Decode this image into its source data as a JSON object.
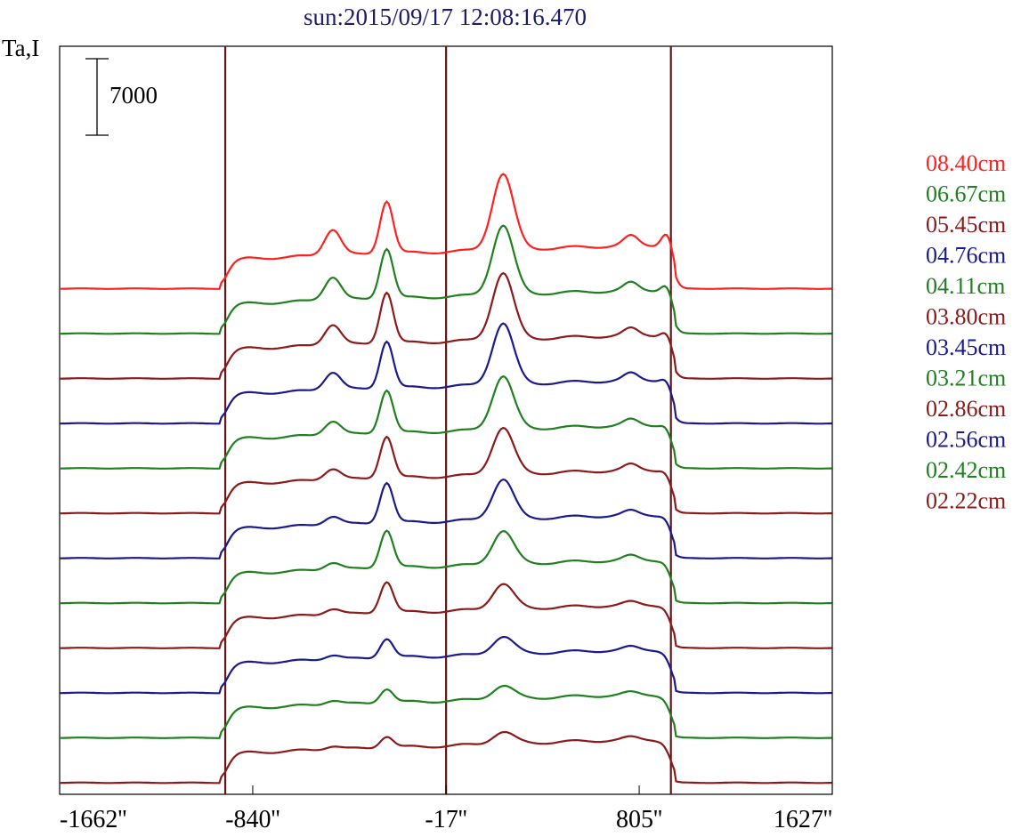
{
  "chart_data": {
    "type": "line",
    "title": "sun:2015/09/17 12:08:16.470",
    "ylabel": "Ta,I",
    "xlabel": "",
    "x_ticks": [
      {
        "value": -1662,
        "label": "-1662''"
      },
      {
        "value": -840,
        "label": "-840''"
      },
      {
        "value": -17,
        "label": "-17''"
      },
      {
        "value": 805,
        "label": "805''"
      },
      {
        "value": 1627,
        "label": "1627''"
      }
    ],
    "xlim": [
      -1662,
      1627
    ],
    "scale_bar": {
      "value": 7000,
      "label": "7000"
    },
    "vertical_lines": [
      -957,
      -17,
      940
    ],
    "grid": false,
    "legend_position": "right",
    "series": [
      {
        "name": "08.40cm",
        "color": "#ff2020",
        "peaks": [
          1.0,
          2.0,
          2.85,
          0.35,
          0.95
        ],
        "base": 0.4
      },
      {
        "name": "06.67cm",
        "color": "#208020",
        "peaks": [
          0.9,
          1.9,
          2.6,
          0.28,
          0.65
        ],
        "base": 0.4
      },
      {
        "name": "05.45cm",
        "color": "#8b1a1a",
        "peaks": [
          0.8,
          1.95,
          2.5,
          0.25,
          0.55
        ],
        "base": 0.4
      },
      {
        "name": "04.76cm",
        "color": "#1a1a8b",
        "peaks": [
          0.7,
          1.8,
          2.3,
          0.25,
          0.45
        ],
        "base": 0.4
      },
      {
        "name": "04.11cm",
        "color": "#208020",
        "peaks": [
          0.55,
          1.65,
          2.0,
          0.2,
          0.35
        ],
        "base": 0.4
      },
      {
        "name": "03.80cm",
        "color": "#8b1a1a",
        "peaks": [
          0.45,
          1.6,
          1.75,
          0.2,
          0.3
        ],
        "base": 0.4
      },
      {
        "name": "03.45cm",
        "color": "#1a1a8b",
        "peaks": [
          0.35,
          1.55,
          1.5,
          0.15,
          0.25
        ],
        "base": 0.4
      },
      {
        "name": "03.21cm",
        "color": "#208020",
        "peaks": [
          0.3,
          1.45,
          1.25,
          0.15,
          0.2
        ],
        "base": 0.4
      },
      {
        "name": "02.86cm",
        "color": "#8b1a1a",
        "peaks": [
          0.25,
          1.2,
          0.95,
          0.1,
          0.18
        ],
        "base": 0.4
      },
      {
        "name": "02.56cm",
        "color": "#1a1a8b",
        "peaks": [
          0.2,
          0.75,
          0.65,
          0.1,
          0.15
        ],
        "base": 0.4
      },
      {
        "name": "02.42cm",
        "color": "#208020",
        "peaks": [
          0.18,
          0.55,
          0.5,
          0.08,
          0.12
        ],
        "base": 0.4
      },
      {
        "name": "02.22cm",
        "color": "#8b1a1a",
        "peaks": [
          0.15,
          0.45,
          0.45,
          0.08,
          0.1
        ],
        "base": 0.4
      }
    ]
  }
}
